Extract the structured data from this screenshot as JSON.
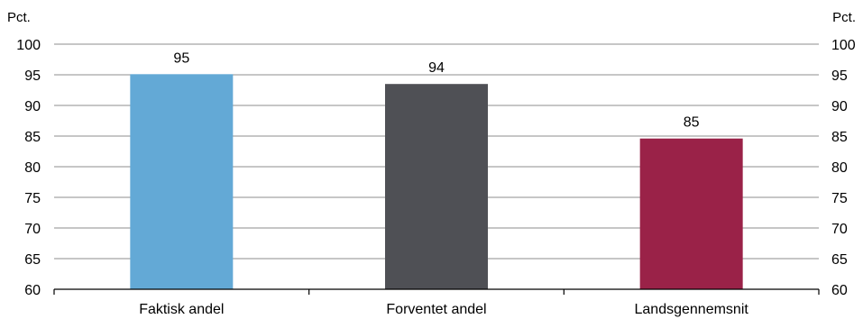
{
  "chart_data": {
    "type": "bar",
    "categories": [
      "Faktisk andel",
      "Forventet andel",
      "Landsgennemsnit"
    ],
    "values": [
      95.1,
      93.5,
      84.6
    ],
    "data_labels": [
      "95",
      "94",
      "85"
    ],
    "bar_colors": [
      "#63a9d6",
      "#4f5055",
      "#9a2248"
    ],
    "ylim": [
      60,
      100
    ],
    "yticks": [
      60,
      65,
      70,
      75,
      80,
      85,
      90,
      95,
      100
    ],
    "left_unit": "Pct.",
    "right_unit": "Pct.",
    "grid": true,
    "legend": "none"
  }
}
